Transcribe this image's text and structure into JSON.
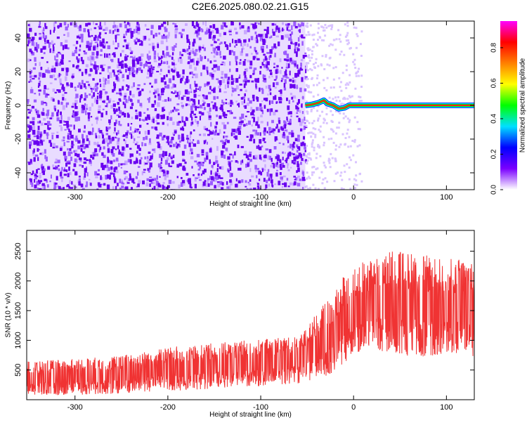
{
  "title": "C2E6.2025.080.02.21.G15",
  "chart_data": [
    {
      "type": "heatmap",
      "xlabel": "Height of straight line (km)",
      "ylabel": "Frequency (Hz)",
      "xlim": [
        -352,
        130
      ],
      "ylim": [
        -50,
        50
      ],
      "xticks": [
        -300,
        -200,
        -100,
        0,
        100
      ],
      "yticks": [
        -40,
        -20,
        0,
        20,
        40
      ],
      "colorbar": {
        "label": "Normalized spectral amplitude",
        "range": [
          0,
          0.95
        ],
        "ticks": [
          "0.0",
          "0.2",
          "0.4",
          "0.6",
          "0.8"
        ],
        "colormap": [
          "#ffffff",
          "#7a00ff",
          "#0000ff",
          "#00e0ff",
          "#00ff00",
          "#ffff00",
          "#ff8000",
          "#ff0000",
          "#ff00ff"
        ]
      },
      "noise_region_x": [
        -352,
        -52
      ],
      "sparse_noise_x": [
        -52,
        8
      ],
      "signal_line": {
        "x": [
          -52,
          -45,
          -38,
          -32,
          -28,
          -22,
          -16,
          -10,
          -5,
          0,
          130
        ],
        "frequency": [
          0,
          0.5,
          1.5,
          3,
          1,
          0,
          -2,
          -1.5,
          0,
          0,
          0
        ],
        "amplitude": 0.8
      }
    },
    {
      "type": "line",
      "xlabel": "Height of straight line (km)",
      "ylabel": "SNR (10 * v/v)",
      "xlim": [
        -352,
        130
      ],
      "ylim": [
        0,
        2850
      ],
      "xticks": [
        -300,
        -200,
        -100,
        0,
        100
      ],
      "yticks": [
        500,
        1000,
        1500,
        2000,
        2500
      ],
      "color": "#f03333",
      "envelope": {
        "x": [
          -352,
          -300,
          -250,
          -200,
          -150,
          -100,
          -60,
          -40,
          -20,
          -10,
          0,
          10,
          20,
          40,
          60,
          80,
          100,
          130
        ],
        "lower": [
          100,
          110,
          130,
          180,
          220,
          260,
          310,
          380,
          520,
          650,
          800,
          900,
          900,
          850,
          800,
          800,
          850,
          800
        ],
        "upper": [
          620,
          660,
          720,
          850,
          920,
          980,
          1050,
          1400,
          1800,
          2050,
          2150,
          2250,
          2350,
          2450,
          2400,
          2350,
          2300,
          2300
        ]
      }
    }
  ]
}
